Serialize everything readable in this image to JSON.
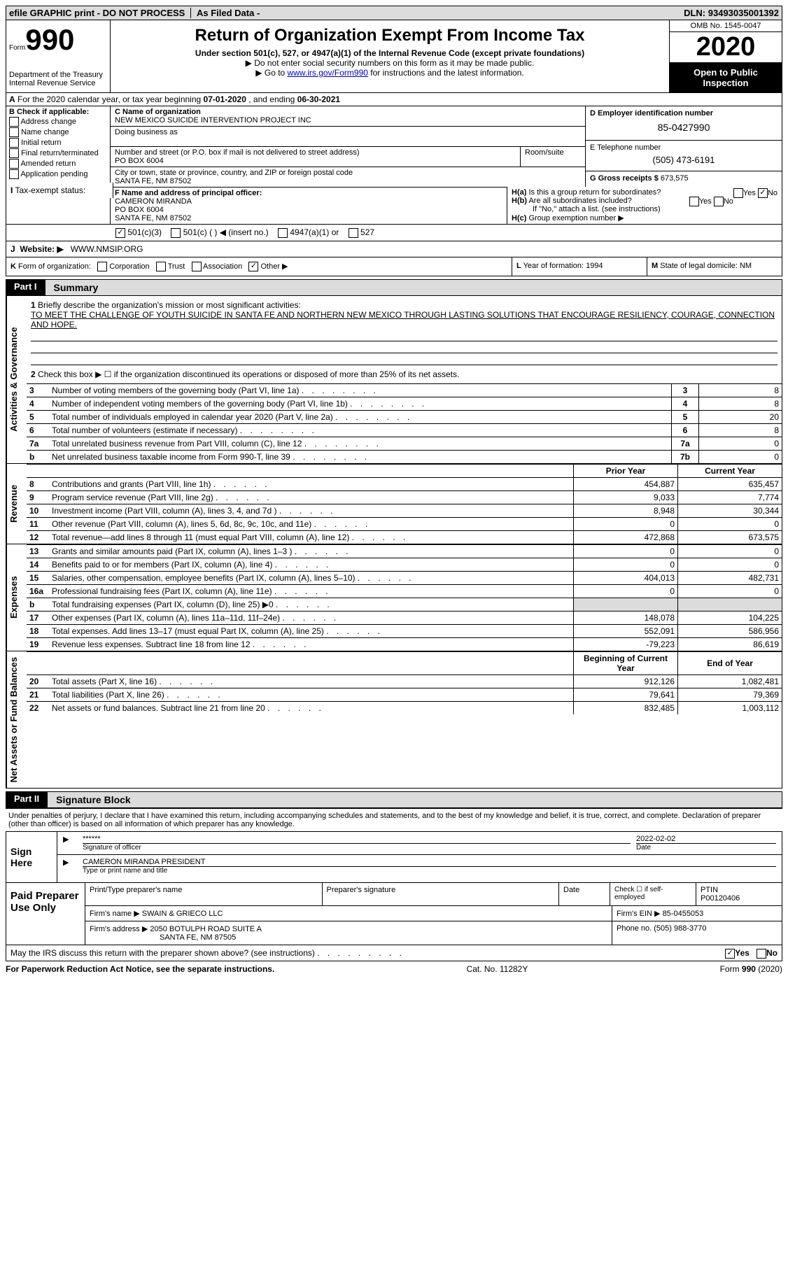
{
  "top_bar": {
    "efile": "efile GRAPHIC print - DO NOT PROCESS",
    "as_filed": "As Filed Data -",
    "dln_label": "DLN:",
    "dln": "93493035001392"
  },
  "header": {
    "form_label": "Form",
    "form_number": "990",
    "dept": "Department of the Treasury\nInternal Revenue Service",
    "title": "Return of Organization Exempt From Income Tax",
    "subtitle": "Under section 501(c), 527, or 4947(a)(1) of the Internal Revenue Code (except private foundations)",
    "note1": "▶ Do not enter social security numbers on this form as it may be made public.",
    "note2_pre": "▶ Go to ",
    "note2_link": "www.irs.gov/Form990",
    "note2_post": " for instructions and the latest information.",
    "omb": "OMB No. 1545-0047",
    "year": "2020",
    "open_public": "Open to Public Inspection"
  },
  "row_a": {
    "label": "A",
    "text_pre": "For the 2020 calendar year, or tax year beginning ",
    "begin": "07-01-2020",
    "mid": " , and ending ",
    "end": "06-30-2021"
  },
  "col_b": {
    "header": "B Check if applicable:",
    "items": [
      "Address change",
      "Name change",
      "Initial return",
      "Final return/terminated",
      "Amended return",
      "Application pending"
    ]
  },
  "col_c": {
    "name_label": "C Name of organization",
    "name": "NEW MEXICO SUICIDE INTERVENTION PROJECT INC",
    "dba_label": "Doing business as",
    "dba": "",
    "street_label": "Number and street (or P.O. box if mail is not delivered to street address)",
    "street": "PO BOX 6004",
    "room_label": "Room/suite",
    "city_label": "City or town, state or province, country, and ZIP or foreign postal code",
    "city": "SANTA FE, NM  87502"
  },
  "col_d": {
    "ein_label": "D Employer identification number",
    "ein": "85-0427990",
    "phone_label": "E Telephone number",
    "phone": "(505) 473-6191",
    "gross_label": "G Gross receipts $",
    "gross": "673,575"
  },
  "officer": {
    "label": "F  Name and address of principal officer:",
    "name": "CAMERON MIRANDA",
    "addr1": "PO BOX 6004",
    "addr2": "SANTA FE, NM  87502"
  },
  "h_section": {
    "ha_label": "H(a)",
    "ha_text": "Is this a group return for subordinates?",
    "ha_yes": "Yes",
    "ha_no": "No",
    "hb_label": "H(b)",
    "hb_text": "Are all subordinates included?",
    "hb_note": "If \"No,\" attach a list. (see instructions)",
    "hc_label": "H(c)",
    "hc_text": "Group exemption number ▶"
  },
  "line_i": {
    "label": "I",
    "text": "Tax-exempt status:",
    "opt1": "501(c)(3)",
    "opt2": "501(c) (   ) ◀ (insert no.)",
    "opt3": "4947(a)(1) or",
    "opt4": "527"
  },
  "line_j": {
    "label": "J",
    "text": "Website: ▶",
    "value": "WWW.NMSIP.ORG"
  },
  "line_k": {
    "label": "K",
    "text": "Form of organization:",
    "opts": [
      "Corporation",
      "Trust",
      "Association",
      "Other ▶"
    ]
  },
  "line_l": {
    "label": "L",
    "text": "Year of formation:",
    "value": "1994"
  },
  "line_m": {
    "label": "M",
    "text": "State of legal domicile:",
    "value": "NM"
  },
  "part1": {
    "label": "Part I",
    "title": "Summary",
    "side1": "Activities & Governance",
    "side2": "Revenue",
    "side3": "Expenses",
    "side4": "Net Assets or Fund Balances",
    "q1_label": "1",
    "q1_text": "Briefly describe the organization's mission or most significant activities:",
    "q1_value": "TO MEET THE CHALLENGE OF YOUTH SUICIDE IN SANTA FE AND NORTHERN NEW MEXICO THROUGH LASTING SOLUTIONS THAT ENCOURAGE RESILIENCY, COURAGE, CONNECTION AND HOPE.",
    "q2_label": "2",
    "q2_text": "Check this box ▶ ☐ if the organization discontinued its operations or disposed of more than 25% of its net assets.",
    "lines_single": [
      {
        "n": "3",
        "t": "Number of voting members of the governing body (Part VI, line 1a)",
        "rn": "3",
        "v": "8"
      },
      {
        "n": "4",
        "t": "Number of independent voting members of the governing body (Part VI, line 1b)",
        "rn": "4",
        "v": "8"
      },
      {
        "n": "5",
        "t": "Total number of individuals employed in calendar year 2020 (Part V, line 2a)",
        "rn": "5",
        "v": "20"
      },
      {
        "n": "6",
        "t": "Total number of volunteers (estimate if necessary)",
        "rn": "6",
        "v": "8"
      },
      {
        "n": "7a",
        "t": "Total unrelated business revenue from Part VIII, column (C), line 12",
        "rn": "7a",
        "v": "0"
      },
      {
        "n": "b",
        "t": "Net unrelated business taxable income from Form 990-T, line 39",
        "rn": "7b",
        "v": "0"
      }
    ],
    "col_headers": [
      "Prior Year",
      "Current Year"
    ],
    "revenue_lines": [
      {
        "n": "8",
        "t": "Contributions and grants (Part VIII, line 1h)",
        "py": "454,887",
        "cy": "635,457"
      },
      {
        "n": "9",
        "t": "Program service revenue (Part VIII, line 2g)",
        "py": "9,033",
        "cy": "7,774"
      },
      {
        "n": "10",
        "t": "Investment income (Part VIII, column (A), lines 3, 4, and 7d )",
        "py": "8,948",
        "cy": "30,344"
      },
      {
        "n": "11",
        "t": "Other revenue (Part VIII, column (A), lines 5, 6d, 8c, 9c, 10c, and 11e)",
        "py": "0",
        "cy": "0"
      },
      {
        "n": "12",
        "t": "Total revenue—add lines 8 through 11 (must equal Part VIII, column (A), line 12)",
        "py": "472,868",
        "cy": "673,575"
      }
    ],
    "expense_lines": [
      {
        "n": "13",
        "t": "Grants and similar amounts paid (Part IX, column (A), lines 1–3 )",
        "py": "0",
        "cy": "0"
      },
      {
        "n": "14",
        "t": "Benefits paid to or for members (Part IX, column (A), line 4)",
        "py": "0",
        "cy": "0"
      },
      {
        "n": "15",
        "t": "Salaries, other compensation, employee benefits (Part IX, column (A), lines 5–10)",
        "py": "404,013",
        "cy": "482,731"
      },
      {
        "n": "16a",
        "t": "Professional fundraising fees (Part IX, column (A), line 11e)",
        "py": "0",
        "cy": "0"
      },
      {
        "n": "b",
        "t": "Total fundraising expenses (Part IX, column (D), line 25) ▶0",
        "py": "",
        "cy": "",
        "shade": true
      },
      {
        "n": "17",
        "t": "Other expenses (Part IX, column (A), lines 11a–11d, 11f–24e)",
        "py": "148,078",
        "cy": "104,225"
      },
      {
        "n": "18",
        "t": "Total expenses. Add lines 13–17 (must equal Part IX, column (A), line 25)",
        "py": "552,091",
        "cy": "586,956"
      },
      {
        "n": "19",
        "t": "Revenue less expenses. Subtract line 18 from line 12",
        "py": "-79,223",
        "cy": "86,619"
      }
    ],
    "net_headers": [
      "Beginning of Current Year",
      "End of Year"
    ],
    "net_lines": [
      {
        "n": "20",
        "t": "Total assets (Part X, line 16)",
        "py": "912,126",
        "cy": "1,082,481"
      },
      {
        "n": "21",
        "t": "Total liabilities (Part X, line 26)",
        "py": "79,641",
        "cy": "79,369"
      },
      {
        "n": "22",
        "t": "Net assets or fund balances. Subtract line 21 from line 20",
        "py": "832,485",
        "cy": "1,003,112"
      }
    ]
  },
  "part2": {
    "label": "Part II",
    "title": "Signature Block",
    "declaration": "Under penalties of perjury, I declare that I have examined this return, including accompanying schedules and statements, and to the best of my knowledge and belief, it is true, correct, and complete. Declaration of preparer (other than officer) is based on all information of which preparer has any knowledge.",
    "sign_here": "Sign Here",
    "sig_masked": "******",
    "sig_label": "Signature of officer",
    "date": "2022-02-02",
    "date_label": "Date",
    "name_title": "CAMERON MIRANDA PRESIDENT",
    "name_title_label": "Type or print name and title",
    "paid_label": "Paid Preparer Use Only",
    "prep_name_label": "Print/Type preparer's name",
    "prep_sig_label": "Preparer's signature",
    "prep_date_label": "Date",
    "check_self": "Check ☐ if self-employed",
    "ptin_label": "PTIN",
    "ptin": "P00120406",
    "firm_name_label": "Firm's name    ▶",
    "firm_name": "SWAIN & GRIECO LLC",
    "firm_ein_label": "Firm's EIN ▶",
    "firm_ein": "85-0455053",
    "firm_addr_label": "Firm's address ▶",
    "firm_addr": "2050 BOTULPH ROAD SUITE A",
    "firm_city": "SANTA FE, NM  87505",
    "phone_label": "Phone no.",
    "phone": "(505) 988-3770",
    "may_irs": "May the IRS discuss this return with the preparer shown above? (see instructions)",
    "yes": "Yes",
    "no": "No"
  },
  "footer": {
    "left": "For Paperwork Reduction Act Notice, see the separate instructions.",
    "mid": "Cat. No. 11282Y",
    "right": "Form 990 (2020)"
  }
}
